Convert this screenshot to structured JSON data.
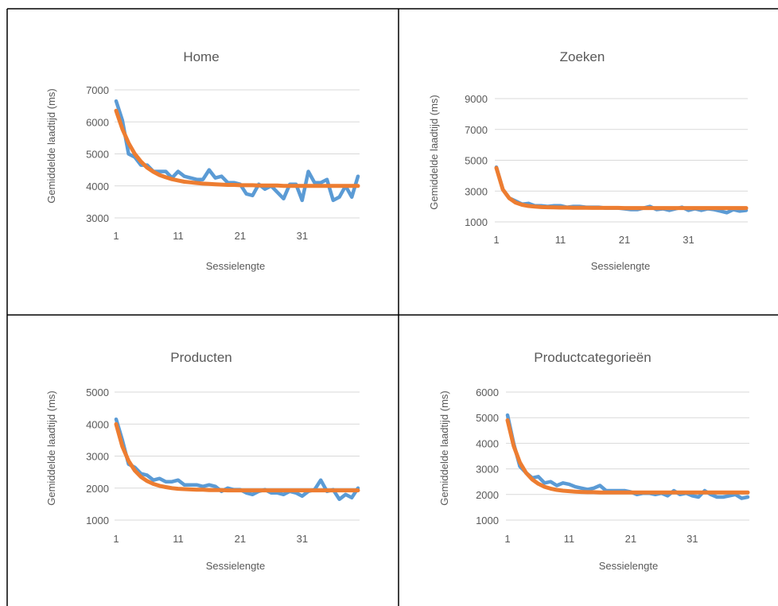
{
  "colors": {
    "actual": "#5b9bd5",
    "trend": "#ed7d31",
    "grid": "#d9d9d9",
    "text": "#595959",
    "border": "#000000"
  },
  "chart_data": [
    {
      "type": "line",
      "title": "Home",
      "xlabel": "Sessielengte",
      "ylabel": "Gemiddelde laadtijd (ms)",
      "x_ticks": [
        1,
        11,
        21,
        31
      ],
      "y_ticks": [
        3000,
        4000,
        5000,
        6000,
        7000
      ],
      "xlim": [
        1,
        40
      ],
      "ylim": [
        3000,
        7000
      ],
      "grid": true,
      "series": [
        {
          "key": "actual",
          "values": [
            6650,
            6050,
            5000,
            4900,
            4650,
            4650,
            4450,
            4450,
            4450,
            4250,
            4450,
            4300,
            4250,
            4200,
            4200,
            4500,
            4250,
            4300,
            4100,
            4100,
            4050,
            3750,
            3700,
            4050,
            3900,
            4000,
            3800,
            3600,
            4050,
            4050,
            3550,
            4450,
            4100,
            4100,
            4200,
            3550,
            3650,
            4000,
            3650,
            4300
          ]
        },
        {
          "key": "trend",
          "values": [
            6350,
            5780,
            5340,
            5000,
            4760,
            4570,
            4440,
            4340,
            4270,
            4210,
            4170,
            4130,
            4110,
            4090,
            4070,
            4060,
            4050,
            4040,
            4030,
            4030,
            4020,
            4020,
            4020,
            4010,
            4010,
            4010,
            4010,
            4000,
            4000,
            4000,
            4000,
            4000,
            4000,
            4000,
            4000,
            4000,
            4000,
            4000,
            4000,
            4000
          ]
        }
      ]
    },
    {
      "type": "line",
      "title": "Zoeken",
      "xlabel": "Sessielengte",
      "ylabel": "Gemiddelde laadtijd (ms)",
      "x_ticks": [
        1,
        11,
        21,
        31
      ],
      "y_ticks": [
        1000,
        3000,
        5000,
        7000,
        9000
      ],
      "xlim": [
        1,
        40
      ],
      "ylim": [
        1000,
        9000
      ],
      "grid": true,
      "series": [
        {
          "key": "actual",
          "values": [
            4550,
            3100,
            2550,
            2350,
            2150,
            2200,
            2050,
            2050,
            2000,
            2050,
            2050,
            1950,
            2000,
            2000,
            1950,
            1950,
            1950,
            1900,
            1900,
            1900,
            1850,
            1800,
            1800,
            1900,
            2000,
            1800,
            1850,
            1750,
            1850,
            1950,
            1750,
            1850,
            1750,
            1850,
            1800,
            1700,
            1600,
            1800,
            1700,
            1750
          ]
        },
        {
          "key": "trend",
          "values": [
            4500,
            3100,
            2540,
            2250,
            2110,
            2030,
            1990,
            1960,
            1950,
            1940,
            1930,
            1930,
            1920,
            1920,
            1920,
            1910,
            1910,
            1910,
            1910,
            1910,
            1900,
            1900,
            1900,
            1900,
            1900,
            1900,
            1900,
            1900,
            1900,
            1900,
            1900,
            1900,
            1900,
            1900,
            1900,
            1900,
            1900,
            1900,
            1900,
            1900
          ]
        }
      ]
    },
    {
      "type": "line",
      "title": "Producten",
      "xlabel": "Sessielengte",
      "ylabel": "Gemiddelde laadtijd (ms)",
      "x_ticks": [
        1,
        11,
        21,
        31
      ],
      "y_ticks": [
        1000,
        2000,
        3000,
        4000,
        5000
      ],
      "xlim": [
        1,
        40
      ],
      "ylim": [
        1000,
        5000
      ],
      "grid": true,
      "series": [
        {
          "key": "actual",
          "values": [
            4150,
            3500,
            2750,
            2650,
            2450,
            2400,
            2250,
            2300,
            2200,
            2200,
            2250,
            2100,
            2100,
            2100,
            2050,
            2100,
            2050,
            1900,
            2000,
            1950,
            1950,
            1850,
            1800,
            1900,
            1950,
            1850,
            1850,
            1800,
            1900,
            1850,
            1750,
            1900,
            1950,
            2250,
            1900,
            1950,
            1650,
            1800,
            1700,
            2000
          ]
        },
        {
          "key": "trend",
          "values": [
            4000,
            3300,
            2850,
            2550,
            2350,
            2220,
            2130,
            2070,
            2030,
            2000,
            1980,
            1970,
            1960,
            1950,
            1950,
            1940,
            1940,
            1940,
            1930,
            1930,
            1930,
            1930,
            1930,
            1930,
            1930,
            1930,
            1930,
            1930,
            1930,
            1930,
            1930,
            1930,
            1930,
            1930,
            1930,
            1930,
            1930,
            1930,
            1930,
            1930
          ]
        }
      ]
    },
    {
      "type": "line",
      "title": "Productcategorieën",
      "xlabel": "Sessielengte",
      "ylabel": "Gemiddelde laadtijd (ms)",
      "x_ticks": [
        1,
        11,
        21,
        31
      ],
      "y_ticks": [
        1000,
        2000,
        3000,
        4000,
        5000,
        6000
      ],
      "xlim": [
        1,
        40
      ],
      "ylim": [
        1000,
        6000
      ],
      "grid": true,
      "series": [
        {
          "key": "actual",
          "values": [
            5100,
            4000,
            3100,
            2850,
            2650,
            2700,
            2450,
            2500,
            2350,
            2450,
            2400,
            2300,
            2250,
            2200,
            2250,
            2350,
            2150,
            2150,
            2150,
            2150,
            2100,
            2000,
            2050,
            2050,
            2000,
            2050,
            1950,
            2150,
            2000,
            2050,
            1950,
            1900,
            2150,
            2000,
            1900,
            1900,
            1950,
            2000,
            1850,
            1900
          ]
        },
        {
          "key": "trend",
          "values": [
            4900,
            3900,
            3250,
            2850,
            2590,
            2420,
            2300,
            2230,
            2180,
            2150,
            2130,
            2110,
            2100,
            2090,
            2090,
            2080,
            2080,
            2080,
            2080,
            2080,
            2080,
            2080,
            2080,
            2080,
            2080,
            2080,
            2080,
            2080,
            2080,
            2080,
            2080,
            2080,
            2080,
            2080,
            2080,
            2080,
            2080,
            2080,
            2080,
            2080
          ]
        }
      ]
    }
  ]
}
